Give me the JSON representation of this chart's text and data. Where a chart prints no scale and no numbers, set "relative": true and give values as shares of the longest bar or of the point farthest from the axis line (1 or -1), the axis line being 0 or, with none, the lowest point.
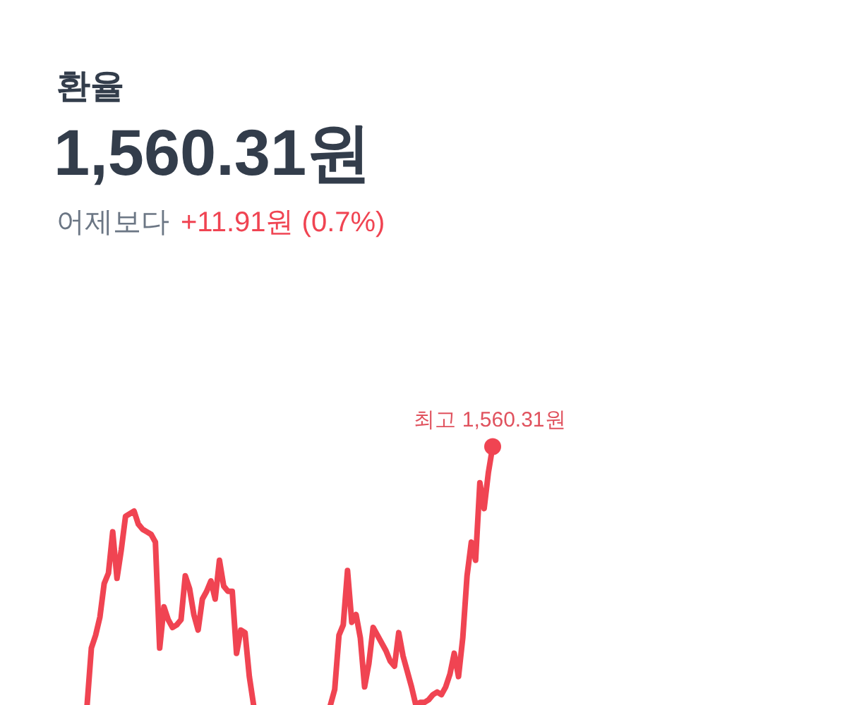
{
  "chart_data": {
    "type": "line",
    "title": "환율",
    "subtitle": "1,560.31원",
    "annotations": [
      "어제보다",
      "+11.91원 (0.7%)",
      "최고 1,560.31원"
    ],
    "relative": true,
    "categories": [
      null,
      null,
      null,
      null,
      null,
      null,
      null,
      null,
      null,
      null,
      null,
      null,
      null,
      null,
      null,
      null,
      null,
      null,
      null,
      null,
      null,
      null,
      null,
      null,
      null,
      null,
      null,
      null,
      null,
      null,
      null,
      null,
      null,
      null,
      null,
      null,
      null,
      null,
      null,
      null,
      null,
      null,
      null,
      null,
      null,
      null,
      null,
      null,
      null,
      null,
      null,
      null,
      null,
      null,
      null,
      null,
      null,
      null,
      null,
      null,
      null,
      null,
      null,
      null,
      null,
      null,
      null,
      null,
      null,
      null,
      null,
      null,
      null,
      null,
      null,
      null,
      null,
      null,
      null,
      null,
      null,
      null,
      null,
      null,
      null,
      null,
      null,
      null,
      null,
      null,
      null,
      null,
      null,
      null,
      null,
      null
    ],
    "series": [
      {
        "color": "#f04452",
        "values": [
          0,
          0.22,
          0.27,
          0.34,
          0.47,
          0.51,
          0.67,
          0.49,
          0.6,
          0.73,
          0.74,
          0.75,
          0.7,
          0.68,
          0.67,
          0.66,
          0.63,
          0.22,
          0.38,
          0.33,
          0.3,
          0.31,
          0.33,
          0.5,
          0.45,
          0.35,
          0.29,
          0.41,
          0.44,
          0.48,
          0.41,
          0.56,
          0.46,
          0.44,
          0.44,
          0.2,
          0.29,
          0.28,
          0.11,
          0,
          null,
          null,
          null,
          null,
          null,
          null,
          null,
          null,
          null,
          null,
          null,
          null,
          null,
          null,
          null,
          null,
          null,
          null,
          null,
          null,
          null,
          null,
          null,
          null,
          null,
          null,
          null,
          null,
          null,
          null,
          null,
          null,
          null,
          null,
          null,
          null,
          null,
          null,
          null,
          null,
          null,
          null,
          null,
          null,
          null,
          null,
          null,
          null,
          null,
          null,
          null,
          null,
          null,
          null,
          null,
          null
        ]
      },
      {
        "color": "#f04452",
        "values": [
          null,
          null,
          null,
          null,
          null,
          null,
          null,
          null,
          null,
          null,
          null,
          null,
          null,
          null,
          null,
          null,
          null,
          null,
          null,
          null,
          null,
          null,
          null,
          null,
          null,
          null,
          null,
          null,
          null,
          null,
          null,
          null,
          null,
          null,
          null,
          null,
          null,
          null,
          null,
          null,
          null,
          null,
          null,
          null,
          null,
          null,
          null,
          null,
          null,
          null,
          null,
          null,
          null,
          null,
          null,
          null,
          null,
          0,
          0.06,
          0.27,
          0.31,
          0.52,
          0.32,
          0.35,
          0.26,
          0.07,
          0.16,
          0.3,
          0.27,
          0.24,
          0.21,
          0.17,
          0.15,
          0.28,
          0.19,
          0.13,
          0.07,
          0,
          0.01,
          0.01,
          0.02,
          0.04,
          0.05,
          0.04,
          0.07,
          0.12,
          0.2,
          0.11,
          0.26,
          0.5,
          0.63,
          0.56,
          0.86,
          0.76,
          0.9,
          1
        ]
      }
    ]
  }
}
